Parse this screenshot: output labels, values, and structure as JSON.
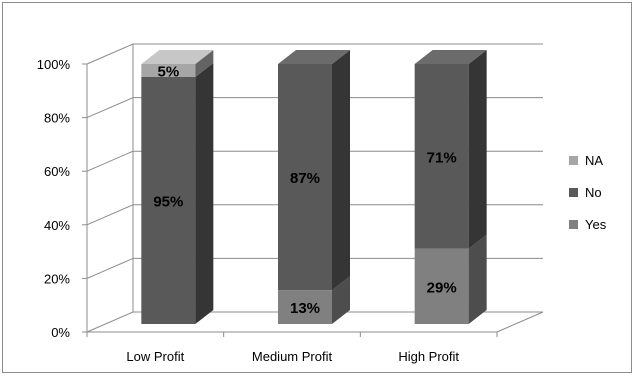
{
  "chart_data": {
    "type": "bar",
    "stacked": true,
    "percent_stacked": true,
    "three_d": true,
    "categories": [
      "Low Profit",
      "Medium Profit",
      "High Profit"
    ],
    "series": [
      {
        "name": "Yes",
        "values": [
          0,
          13,
          29
        ],
        "labels": [
          "",
          "13%",
          "29%"
        ],
        "color": "#808080"
      },
      {
        "name": "No",
        "values": [
          95,
          87,
          71
        ],
        "labels": [
          "95%",
          "87%",
          "71%"
        ],
        "color": "#595959"
      },
      {
        "name": "NA",
        "values": [
          5,
          0,
          0
        ],
        "labels": [
          "5%",
          "",
          ""
        ],
        "color": "#a6a6a6"
      }
    ],
    "ylim": [
      0,
      100
    ],
    "y_ticks": [
      "0%",
      "20%",
      "40%",
      "60%",
      "80%",
      "100%"
    ],
    "grid": true,
    "legend": {
      "position": "right",
      "order": [
        "NA",
        "No",
        "Yes"
      ]
    }
  }
}
